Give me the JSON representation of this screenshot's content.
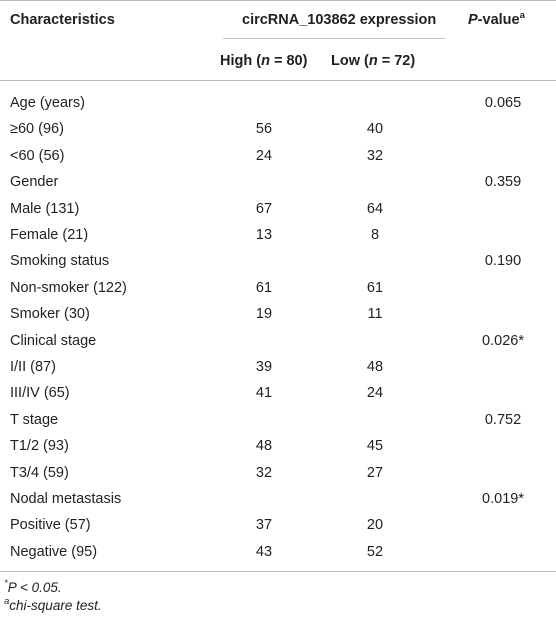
{
  "header": {
    "characteristics": "Characteristics",
    "expression": "circRNA_103862 expression",
    "pvalue_italic": "P",
    "pvalue_rest": "-value",
    "pvalue_sup": "a",
    "high": "High (",
    "high_n": "n",
    "high_rest": " = 80)",
    "low": "Low (",
    "low_n": "n",
    "low_rest": " = 72)"
  },
  "rows": [
    {
      "label": "Age (years)",
      "high": "",
      "low": "",
      "p": "0.065"
    },
    {
      "label": "≥60 (96)",
      "high": "56",
      "low": "40",
      "p": ""
    },
    {
      "label": "<60 (56)",
      "high": "24",
      "low": "32",
      "p": ""
    },
    {
      "label": "Gender",
      "high": "",
      "low": "",
      "p": "0.359"
    },
    {
      "label": "Male (131)",
      "high": "67",
      "low": "64",
      "p": ""
    },
    {
      "label": "Female (21)",
      "high": "13",
      "low": "8",
      "p": ""
    },
    {
      "label": "Smoking status",
      "high": "",
      "low": "",
      "p": "0.190"
    },
    {
      "label": "Non-smoker (122)",
      "high": "61",
      "low": "61",
      "p": ""
    },
    {
      "label": "Smoker (30)",
      "high": "19",
      "low": "11",
      "p": ""
    },
    {
      "label": "Clinical stage",
      "high": "",
      "low": "",
      "p": "0.026*"
    },
    {
      "label": "I/II (87)",
      "high": "39",
      "low": "48",
      "p": ""
    },
    {
      "label": "III/IV (65)",
      "high": "41",
      "low": "24",
      "p": ""
    },
    {
      "label": "T stage",
      "high": "",
      "low": "",
      "p": "0.752"
    },
    {
      "label": "T1/2 (93)",
      "high": "48",
      "low": "45",
      "p": ""
    },
    {
      "label": "T3/4 (59)",
      "high": "32",
      "low": "27",
      "p": ""
    },
    {
      "label": "Nodal metastasis",
      "high": "",
      "low": "",
      "p": "0.019*"
    },
    {
      "label": "Positive (57)",
      "high": "37",
      "low": "20",
      "p": ""
    },
    {
      "label": "Negative (95)",
      "high": "43",
      "low": "52",
      "p": ""
    }
  ],
  "footnotes": {
    "star": "*",
    "star_text": "P < 0.05.",
    "a_sup": "a",
    "a_text": "chi-square test."
  }
}
